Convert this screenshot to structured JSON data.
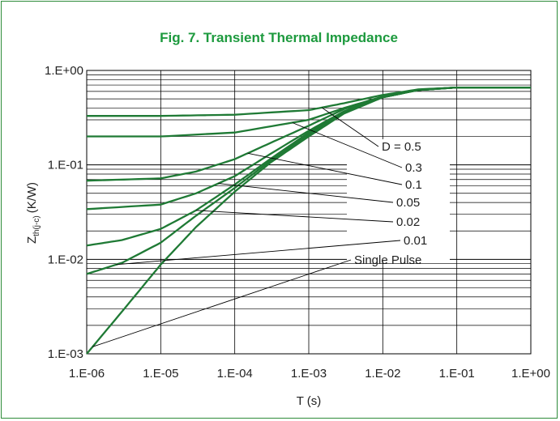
{
  "chart_data": {
    "type": "line",
    "title": "Fig. 7. Transient Thermal Impedance",
    "xlabel": "T (s)",
    "ylabel": "Z",
    "ylabel_sub": "th(j-c)",
    "ylabel_unit": "(K/W)",
    "x_scale": "log",
    "y_scale": "log",
    "xlim": [
      1e-06,
      1
    ],
    "ylim": [
      0.001,
      1
    ],
    "x_ticks": [
      "1.E-06",
      "1.E-05",
      "1.E-04",
      "1.E-03",
      "1.E-02",
      "1.E-01",
      "1.E+00"
    ],
    "y_ticks": [
      "1.E-03",
      "1.E-02",
      "1.E-01",
      "1.E+00"
    ],
    "grid": true,
    "line_color": "#1f7a35",
    "series": [
      {
        "name": "D = 0.5",
        "x": [
          1e-06,
          1e-05,
          0.0001,
          0.001,
          0.003,
          0.01,
          0.03,
          0.1,
          1
        ],
        "y": [
          0.33,
          0.33,
          0.34,
          0.38,
          0.45,
          0.55,
          0.63,
          0.66,
          0.66
        ]
      },
      {
        "name": "0.3",
        "x": [
          1e-06,
          1e-05,
          0.0001,
          0.001,
          0.003,
          0.01,
          0.03,
          0.1,
          1
        ],
        "y": [
          0.2,
          0.2,
          0.22,
          0.3,
          0.4,
          0.53,
          0.62,
          0.66,
          0.66
        ]
      },
      {
        "name": "0.1",
        "x": [
          1e-06,
          1e-05,
          3e-05,
          0.0001,
          0.0003,
          0.001,
          0.003,
          0.01,
          0.03,
          0.1,
          1
        ],
        "y": [
          0.068,
          0.072,
          0.085,
          0.115,
          0.17,
          0.26,
          0.39,
          0.52,
          0.62,
          0.66,
          0.66
        ]
      },
      {
        "name": "0.05",
        "x": [
          1e-06,
          1e-05,
          3e-05,
          0.0001,
          0.0003,
          0.001,
          0.003,
          0.01,
          0.03,
          0.1,
          1
        ],
        "y": [
          0.034,
          0.038,
          0.05,
          0.076,
          0.13,
          0.23,
          0.37,
          0.52,
          0.62,
          0.66,
          0.66
        ]
      },
      {
        "name": "0.02",
        "x": [
          1e-06,
          3e-06,
          1e-05,
          3e-05,
          0.0001,
          0.0003,
          0.001,
          0.003,
          0.01,
          0.03,
          0.1,
          1
        ],
        "y": [
          0.014,
          0.016,
          0.021,
          0.033,
          0.062,
          0.115,
          0.22,
          0.36,
          0.52,
          0.62,
          0.66,
          0.66
        ]
      },
      {
        "name": "0.01",
        "x": [
          1e-06,
          3e-06,
          1e-05,
          3e-05,
          0.0001,
          0.0003,
          0.001,
          0.003,
          0.01,
          0.03,
          0.1,
          1
        ],
        "y": [
          0.007,
          0.0092,
          0.015,
          0.029,
          0.057,
          0.11,
          0.21,
          0.36,
          0.52,
          0.62,
          0.66,
          0.66
        ]
      },
      {
        "name": "Single Pulse",
        "x": [
          1e-06,
          3e-06,
          1e-05,
          3e-05,
          0.0001,
          0.0003,
          0.001,
          0.003,
          0.01,
          0.03,
          0.1,
          1
        ],
        "y": [
          0.001,
          0.0028,
          0.0088,
          0.022,
          0.052,
          0.105,
          0.2,
          0.35,
          0.52,
          0.62,
          0.66,
          0.66
        ]
      }
    ],
    "annotations": [
      {
        "text": "D = 0.5",
        "x": 0.0015
      },
      {
        "text": "0.3",
        "x": 0.0006
      },
      {
        "text": "0.1",
        "x": 0.00015
      },
      {
        "text": "0.05",
        "x": 6e-05
      },
      {
        "text": "0.02",
        "x": 3e-05
      },
      {
        "text": "0.01",
        "x": 2.5e-06
      },
      {
        "text": "Single Pulse",
        "x": 1.2e-06
      }
    ]
  }
}
